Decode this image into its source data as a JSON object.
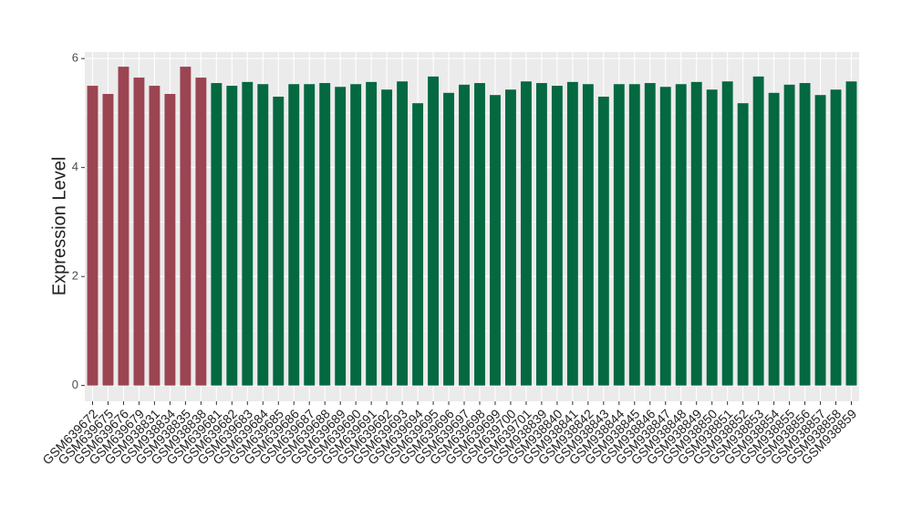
{
  "chart_data": {
    "type": "bar",
    "y_label": "Expression Level",
    "categories": [
      "GSM639672",
      "GSM639675",
      "GSM639676",
      "GSM639679",
      "GSM938831",
      "GSM938834",
      "GSM938835",
      "GSM938838",
      "GSM639681",
      "GSM639682",
      "GSM639683",
      "GSM639684",
      "GSM639685",
      "GSM639686",
      "GSM639687",
      "GSM639688",
      "GSM639689",
      "GSM639690",
      "GSM639691",
      "GSM639692",
      "GSM639693",
      "GSM639694",
      "GSM639695",
      "GSM639696",
      "GSM639697",
      "GSM639698",
      "GSM639699",
      "GSM639700",
      "GSM639701",
      "GSM938839",
      "GSM938840",
      "GSM938841",
      "GSM938842",
      "GSM938843",
      "GSM938844",
      "GSM938845",
      "GSM938846",
      "GSM938847",
      "GSM938848",
      "GSM938849",
      "GSM938850",
      "GSM938851",
      "GSM938852",
      "GSM938853",
      "GSM938854",
      "GSM938855",
      "GSM938856",
      "GSM938857",
      "GSM938858",
      "GSM938859"
    ],
    "values": [
      5.5,
      5.35,
      5.85,
      5.65,
      5.5,
      5.35,
      5.85,
      5.65,
      5.55,
      5.5,
      5.57,
      5.53,
      5.3,
      5.53,
      5.53,
      5.55,
      5.48,
      5.53,
      5.57,
      5.43,
      5.58,
      5.18,
      5.67,
      5.37,
      5.52,
      5.55,
      5.33,
      5.43,
      5.58,
      5.55,
      5.5,
      5.57,
      5.53,
      5.3,
      5.53,
      5.53,
      5.55,
      5.48,
      5.53,
      5.57,
      5.43,
      5.58,
      5.18,
      5.67,
      5.37,
      5.52,
      5.55,
      5.33,
      5.43,
      5.58
    ],
    "colors": [
      "#9b4452",
      "#9b4452",
      "#9b4452",
      "#9b4452",
      "#9b4452",
      "#9b4452",
      "#9b4452",
      "#9b4452",
      "#046841",
      "#046841",
      "#046841",
      "#046841",
      "#046841",
      "#046841",
      "#046841",
      "#046841",
      "#046841",
      "#046841",
      "#046841",
      "#046841",
      "#046841",
      "#046841",
      "#046841",
      "#046841",
      "#046841",
      "#046841",
      "#046841",
      "#046841",
      "#046841",
      "#046841",
      "#046841",
      "#046841",
      "#046841",
      "#046841",
      "#046841",
      "#046841",
      "#046841",
      "#046841",
      "#046841",
      "#046841",
      "#046841",
      "#046841",
      "#046841",
      "#046841",
      "#046841",
      "#046841",
      "#046841",
      "#046841",
      "#046841",
      "#046841"
    ],
    "ylim": [
      -0.29,
      6.12
    ],
    "yticks": [
      0,
      2,
      4,
      6
    ],
    "minor_yticks": [
      1,
      3,
      5
    ],
    "grid": true
  }
}
